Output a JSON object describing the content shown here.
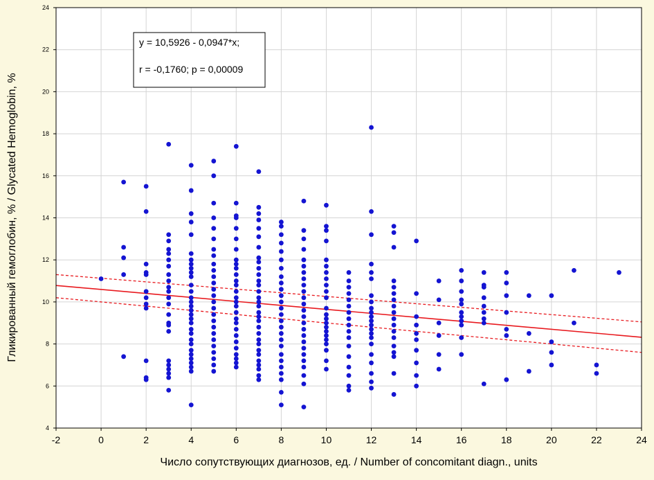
{
  "chart_data": {
    "type": "scatter",
    "title": "",
    "xlabel": "Число сопутствующих диагнозов, ед. / Number of concomitant diagn., units",
    "ylabel": "Гликированный гемоглобин, % / Glycated Hemoglobin, %",
    "xlim": [
      -2,
      24
    ],
    "ylim": [
      4,
      24
    ],
    "xticks": [
      -2,
      0,
      2,
      4,
      6,
      8,
      10,
      12,
      14,
      16,
      18,
      20,
      22,
      24
    ],
    "yticks": [
      4,
      6,
      8,
      10,
      12,
      14,
      16,
      18,
      20,
      22,
      24
    ],
    "grid": true,
    "equation": "y = 10,5926 - 0,0947*x;",
    "stats": "r = -0,1760; p = 0,00009",
    "regression": {
      "intercept": 10.5926,
      "slope": -0.0947
    },
    "confidence_band": {
      "upper": [
        [
          -2,
          11.3
        ],
        [
          24,
          9.05
        ]
      ],
      "lower": [
        [
          -2,
          10.2
        ],
        [
          24,
          7.6
        ]
      ]
    },
    "colors": {
      "points": "#1414d2",
      "regression": "#e8191e",
      "grid": "#d4d4d4",
      "background": "#fbf8df"
    },
    "points": [
      [
        0,
        11.1
      ],
      [
        1,
        15.7
      ],
      [
        1,
        12.6
      ],
      [
        1,
        12.1
      ],
      [
        1,
        11.3
      ],
      [
        1,
        7.4
      ],
      [
        2,
        15.5
      ],
      [
        2,
        14.3
      ],
      [
        2,
        11.8
      ],
      [
        2,
        11.4
      ],
      [
        2,
        11.3
      ],
      [
        2,
        10.5
      ],
      [
        2,
        10.2
      ],
      [
        2,
        9.9
      ],
      [
        2,
        9.7
      ],
      [
        2,
        7.2
      ],
      [
        2,
        6.4
      ],
      [
        2,
        6.3
      ],
      [
        3,
        17.5
      ],
      [
        3,
        13.2
      ],
      [
        3,
        12.9
      ],
      [
        3,
        12.5
      ],
      [
        3,
        12.3
      ],
      [
        3,
        12.0
      ],
      [
        3,
        11.7
      ],
      [
        3,
        11.3
      ],
      [
        3,
        11.0
      ],
      [
        3,
        10.7
      ],
      [
        3,
        10.5
      ],
      [
        3,
        10.2
      ],
      [
        3,
        9.9
      ],
      [
        3,
        9.4
      ],
      [
        3,
        9.0
      ],
      [
        3,
        8.9
      ],
      [
        3,
        8.6
      ],
      [
        3,
        7.2
      ],
      [
        3,
        7.0
      ],
      [
        3,
        6.8
      ],
      [
        3,
        6.6
      ],
      [
        3,
        6.4
      ],
      [
        3,
        5.8
      ],
      [
        4,
        16.5
      ],
      [
        4,
        15.3
      ],
      [
        4,
        14.2
      ],
      [
        4,
        13.8
      ],
      [
        4,
        13.2
      ],
      [
        4,
        12.3
      ],
      [
        4,
        12.0
      ],
      [
        4,
        11.8
      ],
      [
        4,
        11.6
      ],
      [
        4,
        11.4
      ],
      [
        4,
        11.2
      ],
      [
        4,
        10.8
      ],
      [
        4,
        10.5
      ],
      [
        4,
        10.2
      ],
      [
        4,
        10.0
      ],
      [
        4,
        9.8
      ],
      [
        4,
        9.6
      ],
      [
        4,
        9.4
      ],
      [
        4,
        9.2
      ],
      [
        4,
        9.0
      ],
      [
        4,
        8.7
      ],
      [
        4,
        8.5
      ],
      [
        4,
        8.2
      ],
      [
        4,
        8.0
      ],
      [
        4,
        7.7
      ],
      [
        4,
        7.5
      ],
      [
        4,
        7.3
      ],
      [
        4,
        7.1
      ],
      [
        4,
        6.9
      ],
      [
        4,
        6.7
      ],
      [
        4,
        5.1
      ],
      [
        5,
        16.7
      ],
      [
        5,
        16.0
      ],
      [
        5,
        14.7
      ],
      [
        5,
        14.0
      ],
      [
        5,
        13.5
      ],
      [
        5,
        13.0
      ],
      [
        5,
        12.5
      ],
      [
        5,
        12.2
      ],
      [
        5,
        11.8
      ],
      [
        5,
        11.5
      ],
      [
        5,
        11.2
      ],
      [
        5,
        10.9
      ],
      [
        5,
        10.6
      ],
      [
        5,
        10.3
      ],
      [
        5,
        10.0
      ],
      [
        5,
        9.7
      ],
      [
        5,
        9.4
      ],
      [
        5,
        9.1
      ],
      [
        5,
        8.8
      ],
      [
        5,
        8.5
      ],
      [
        5,
        8.2
      ],
      [
        5,
        7.9
      ],
      [
        5,
        7.6
      ],
      [
        5,
        7.3
      ],
      [
        5,
        7.0
      ],
      [
        5,
        6.7
      ],
      [
        6,
        17.4
      ],
      [
        6,
        14.7
      ],
      [
        6,
        14.1
      ],
      [
        6,
        14.0
      ],
      [
        6,
        13.5
      ],
      [
        6,
        13.0
      ],
      [
        6,
        12.5
      ],
      [
        6,
        12.0
      ],
      [
        6,
        11.8
      ],
      [
        6,
        11.6
      ],
      [
        6,
        11.3
      ],
      [
        6,
        11.0
      ],
      [
        6,
        10.8
      ],
      [
        6,
        10.5
      ],
      [
        6,
        10.2
      ],
      [
        6,
        10.0
      ],
      [
        6,
        9.8
      ],
      [
        6,
        9.5
      ],
      [
        6,
        9.2
      ],
      [
        6,
        9.0
      ],
      [
        6,
        8.7
      ],
      [
        6,
        8.4
      ],
      [
        6,
        8.1
      ],
      [
        6,
        7.8
      ],
      [
        6,
        7.5
      ],
      [
        6,
        7.3
      ],
      [
        6,
        7.1
      ],
      [
        6,
        6.9
      ],
      [
        7,
        16.2
      ],
      [
        7,
        14.5
      ],
      [
        7,
        14.2
      ],
      [
        7,
        13.9
      ],
      [
        7,
        13.5
      ],
      [
        7,
        13.1
      ],
      [
        7,
        12.6
      ],
      [
        7,
        12.1
      ],
      [
        7,
        11.9
      ],
      [
        7,
        11.6
      ],
      [
        7,
        11.3
      ],
      [
        7,
        11.0
      ],
      [
        7,
        10.8
      ],
      [
        7,
        10.5
      ],
      [
        7,
        10.2
      ],
      [
        7,
        10.0
      ],
      [
        7,
        9.8
      ],
      [
        7,
        9.5
      ],
      [
        7,
        9.3
      ],
      [
        7,
        9.1
      ],
      [
        7,
        8.8
      ],
      [
        7,
        8.5
      ],
      [
        7,
        8.2
      ],
      [
        7,
        8.0
      ],
      [
        7,
        7.7
      ],
      [
        7,
        7.5
      ],
      [
        7,
        7.2
      ],
      [
        7,
        7.0
      ],
      [
        7,
        6.8
      ],
      [
        7,
        6.5
      ],
      [
        7,
        6.3
      ],
      [
        8,
        13.8
      ],
      [
        8,
        13.6
      ],
      [
        8,
        13.2
      ],
      [
        8,
        12.8
      ],
      [
        8,
        12.4
      ],
      [
        8,
        12.0
      ],
      [
        8,
        11.6
      ],
      [
        8,
        11.2
      ],
      [
        8,
        10.9
      ],
      [
        8,
        10.6
      ],
      [
        8,
        10.3
      ],
      [
        8,
        10.0
      ],
      [
        8,
        9.7
      ],
      [
        8,
        9.4
      ],
      [
        8,
        9.1
      ],
      [
        8,
        8.8
      ],
      [
        8,
        8.5
      ],
      [
        8,
        8.2
      ],
      [
        8,
        7.9
      ],
      [
        8,
        7.5
      ],
      [
        8,
        7.2
      ],
      [
        8,
        6.9
      ],
      [
        8,
        6.6
      ],
      [
        8,
        6.3
      ],
      [
        8,
        5.7
      ],
      [
        8,
        5.1
      ],
      [
        9,
        14.8
      ],
      [
        9,
        13.4
      ],
      [
        9,
        13.0
      ],
      [
        9,
        12.5
      ],
      [
        9,
        12.0
      ],
      [
        9,
        11.7
      ],
      [
        9,
        11.4
      ],
      [
        9,
        11.1
      ],
      [
        9,
        10.8
      ],
      [
        9,
        10.5
      ],
      [
        9,
        10.2
      ],
      [
        9,
        9.9
      ],
      [
        9,
        9.6
      ],
      [
        9,
        9.3
      ],
      [
        9,
        9.0
      ],
      [
        9,
        8.7
      ],
      [
        9,
        8.4
      ],
      [
        9,
        8.1
      ],
      [
        9,
        7.8
      ],
      [
        9,
        7.5
      ],
      [
        9,
        7.2
      ],
      [
        9,
        6.9
      ],
      [
        9,
        6.5
      ],
      [
        9,
        6.1
      ],
      [
        9,
        5.0
      ],
      [
        10,
        14.6
      ],
      [
        10,
        13.6
      ],
      [
        10,
        13.4
      ],
      [
        10,
        12.9
      ],
      [
        10,
        12.0
      ],
      [
        10,
        11.7
      ],
      [
        10,
        11.4
      ],
      [
        10,
        11.1
      ],
      [
        10,
        10.8
      ],
      [
        10,
        10.5
      ],
      [
        10,
        10.2
      ],
      [
        10,
        9.7
      ],
      [
        10,
        9.4
      ],
      [
        10,
        9.2
      ],
      [
        10,
        9.0
      ],
      [
        10,
        8.8
      ],
      [
        10,
        8.6
      ],
      [
        10,
        8.4
      ],
      [
        10,
        8.2
      ],
      [
        10,
        8.0
      ],
      [
        10,
        7.7
      ],
      [
        10,
        7.2
      ],
      [
        10,
        6.8
      ],
      [
        11,
        11.4
      ],
      [
        11,
        11.0
      ],
      [
        11,
        10.7
      ],
      [
        11,
        10.4
      ],
      [
        11,
        10.1
      ],
      [
        11,
        9.8
      ],
      [
        11,
        9.5
      ],
      [
        11,
        9.2
      ],
      [
        11,
        8.9
      ],
      [
        11,
        8.6
      ],
      [
        11,
        8.3
      ],
      [
        11,
        7.9
      ],
      [
        11,
        7.4
      ],
      [
        11,
        6.9
      ],
      [
        11,
        6.5
      ],
      [
        11,
        6.0
      ],
      [
        11,
        5.8
      ],
      [
        12,
        18.3
      ],
      [
        12,
        14.3
      ],
      [
        12,
        13.2
      ],
      [
        12,
        11.8
      ],
      [
        12,
        11.4
      ],
      [
        12,
        11.1
      ],
      [
        12,
        10.3
      ],
      [
        12,
        10.0
      ],
      [
        12,
        9.7
      ],
      [
        12,
        9.5
      ],
      [
        12,
        9.3
      ],
      [
        12,
        9.1
      ],
      [
        12,
        8.9
      ],
      [
        12,
        8.7
      ],
      [
        12,
        8.5
      ],
      [
        12,
        8.3
      ],
      [
        12,
        8.0
      ],
      [
        12,
        7.5
      ],
      [
        12,
        7.1
      ],
      [
        12,
        6.6
      ],
      [
        12,
        6.2
      ],
      [
        12,
        5.9
      ],
      [
        13,
        13.6
      ],
      [
        13,
        13.3
      ],
      [
        13,
        12.6
      ],
      [
        13,
        11.0
      ],
      [
        13,
        10.7
      ],
      [
        13,
        10.4
      ],
      [
        13,
        10.1
      ],
      [
        13,
        9.8
      ],
      [
        13,
        9.5
      ],
      [
        13,
        9.2
      ],
      [
        13,
        8.9
      ],
      [
        13,
        8.6
      ],
      [
        13,
        8.3
      ],
      [
        13,
        7.9
      ],
      [
        13,
        7.6
      ],
      [
        13,
        7.4
      ],
      [
        13,
        6.6
      ],
      [
        13,
        5.6
      ],
      [
        14,
        12.9
      ],
      [
        14,
        10.4
      ],
      [
        14,
        9.3
      ],
      [
        14,
        8.9
      ],
      [
        14,
        8.5
      ],
      [
        14,
        8.2
      ],
      [
        14,
        7.7
      ],
      [
        14,
        7.1
      ],
      [
        14,
        6.5
      ],
      [
        14,
        6.0
      ],
      [
        15,
        11.0
      ],
      [
        15,
        10.1
      ],
      [
        15,
        9.0
      ],
      [
        15,
        8.4
      ],
      [
        15,
        7.5
      ],
      [
        15,
        6.8
      ],
      [
        16,
        11.5
      ],
      [
        16,
        11.0
      ],
      [
        16,
        10.5
      ],
      [
        16,
        10.1
      ],
      [
        16,
        9.9
      ],
      [
        16,
        9.5
      ],
      [
        16,
        9.3
      ],
      [
        16,
        9.1
      ],
      [
        16,
        8.9
      ],
      [
        16,
        8.3
      ],
      [
        16,
        7.5
      ],
      [
        17,
        11.4
      ],
      [
        17,
        10.8
      ],
      [
        17,
        10.7
      ],
      [
        17,
        10.2
      ],
      [
        17,
        9.8
      ],
      [
        17,
        9.5
      ],
      [
        17,
        9.2
      ],
      [
        17,
        9.0
      ],
      [
        17,
        6.1
      ],
      [
        18,
        11.4
      ],
      [
        18,
        10.9
      ],
      [
        18,
        10.3
      ],
      [
        18,
        9.5
      ],
      [
        18,
        8.7
      ],
      [
        18,
        8.4
      ],
      [
        18,
        6.3
      ],
      [
        19,
        10.3
      ],
      [
        19,
        8.5
      ],
      [
        19,
        6.7
      ],
      [
        20,
        10.3
      ],
      [
        20,
        8.1
      ],
      [
        20,
        7.6
      ],
      [
        20,
        7.0
      ],
      [
        21,
        11.5
      ],
      [
        21,
        9.0
      ],
      [
        22,
        7.0
      ],
      [
        22,
        6.6
      ],
      [
        23,
        11.4
      ]
    ]
  }
}
